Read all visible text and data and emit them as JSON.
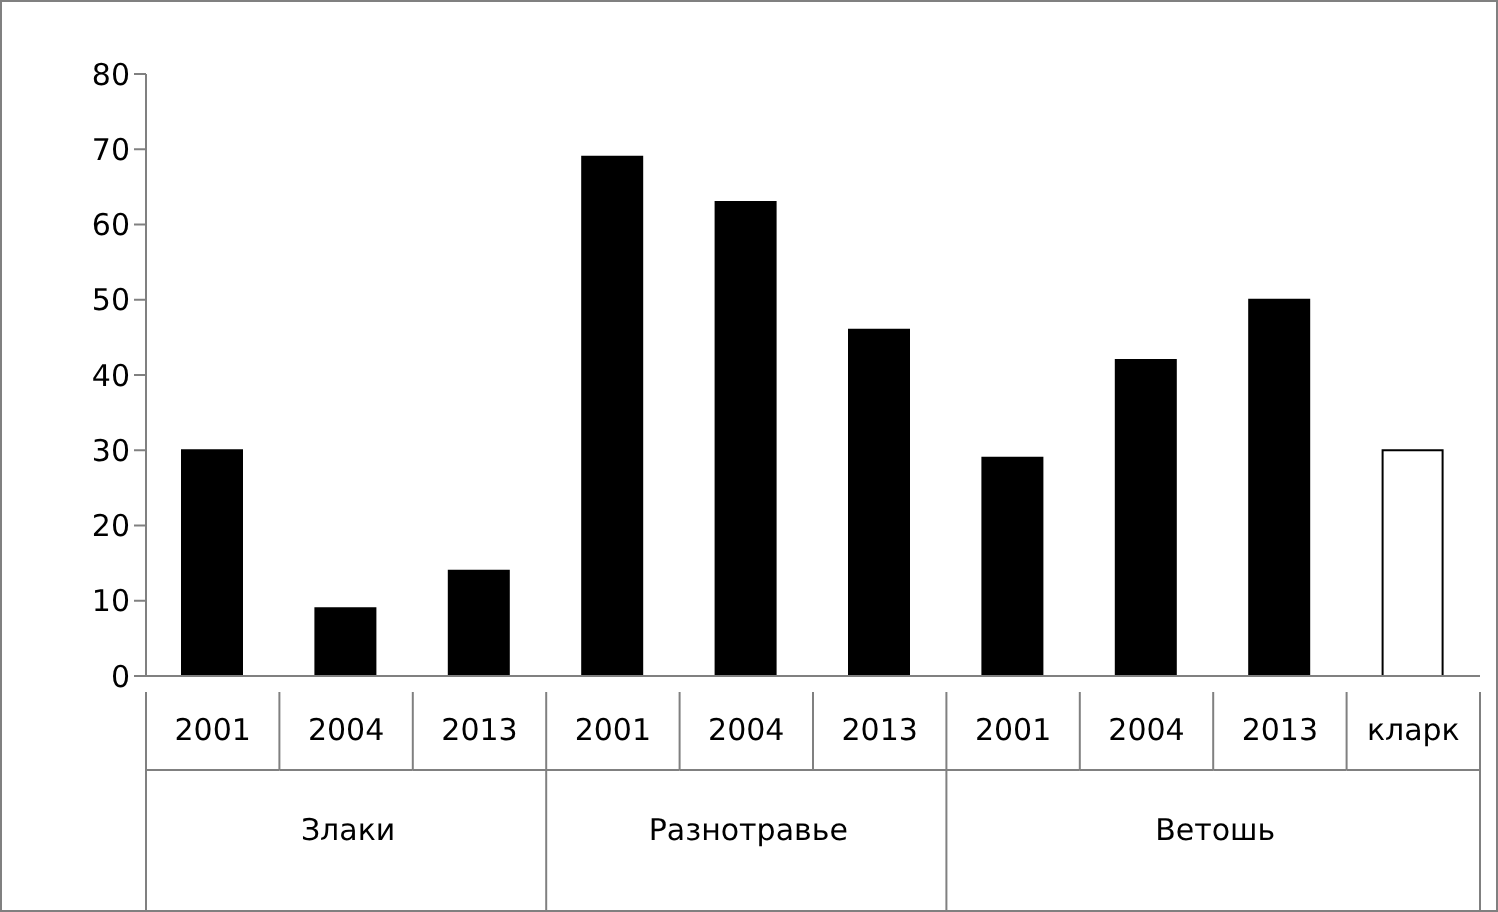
{
  "chart_data": {
    "type": "bar",
    "categories": [
      "2001",
      "2004",
      "2013",
      "2001",
      "2004",
      "2013",
      "2001",
      "2004",
      "2013",
      "кларк"
    ],
    "values": [
      30,
      9,
      14,
      69,
      63,
      46,
      29,
      42,
      50,
      30
    ],
    "colors": [
      "#000000",
      "#000000",
      "#000000",
      "#000000",
      "#000000",
      "#000000",
      "#000000",
      "#000000",
      "#000000",
      "#ffffff"
    ],
    "ylim": [
      0,
      80
    ],
    "yticks": [
      0,
      10,
      20,
      30,
      40,
      50,
      60,
      70,
      80
    ],
    "annotations": [
      "Злаки",
      "Разнотравье",
      "Ветошь"
    ]
  }
}
